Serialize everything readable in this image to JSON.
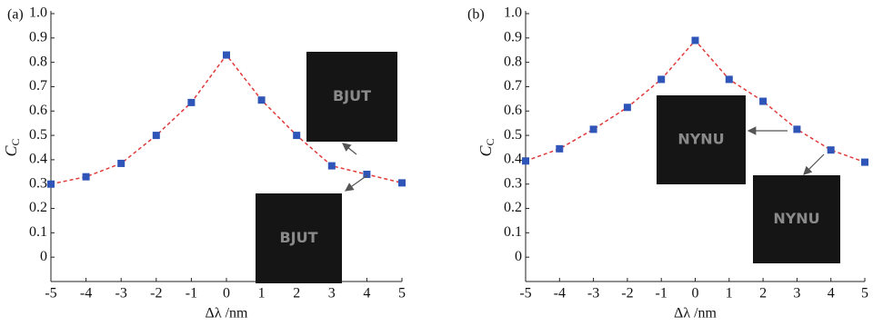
{
  "chart_data": [
    {
      "type": "line",
      "panel": "(a)",
      "xlabel": "Δλ /nm",
      "ylabel": "C",
      "ylabel_sub": "C",
      "x": [
        -5,
        -4,
        -3,
        -2,
        -1,
        0,
        1,
        2,
        3,
        4,
        5
      ],
      "values": [
        0.3,
        0.33,
        0.385,
        0.5,
        0.635,
        0.83,
        0.645,
        0.5,
        0.375,
        0.34,
        0.305
      ],
      "color": "#2f55b8",
      "line_color": "#e03a3a",
      "xlim": [
        -5,
        5
      ],
      "xticks": [
        -5,
        -4,
        -3,
        -2,
        -1,
        0,
        1,
        2,
        3,
        4,
        5
      ],
      "ylim": [
        -0.1,
        1.0
      ],
      "yticks": [
        0,
        0.1,
        0.2,
        0.3,
        0.4,
        0.5,
        0.6,
        0.7,
        0.8,
        0.9,
        {
          "value": 1,
          "label": "1.0"
        }
      ],
      "annotations": [
        "BJUT",
        "BJUT"
      ]
    },
    {
      "type": "line",
      "panel": "(b)",
      "xlabel": "Δλ /nm",
      "ylabel": "C",
      "ylabel_sub": "C",
      "x": [
        -5,
        -4,
        -3,
        -2,
        -1,
        0,
        1,
        2,
        3,
        4,
        5
      ],
      "values": [
        0.395,
        0.445,
        0.525,
        0.615,
        0.73,
        0.89,
        0.73,
        0.64,
        0.525,
        0.44,
        0.39
      ],
      "color": "#2f55b8",
      "line_color": "#e03a3a",
      "xlim": [
        -5,
        5
      ],
      "xticks": [
        -5,
        -4,
        -3,
        -2,
        -1,
        0,
        1,
        2,
        3,
        4,
        5
      ],
      "ylim": [
        -0.1,
        1.0
      ],
      "yticks": [
        0,
        0.1,
        0.2,
        0.3,
        0.4,
        0.5,
        0.6,
        0.7,
        0.8,
        0.9,
        {
          "value": 1,
          "label": "1.0"
        }
      ],
      "annotations": [
        "NYNU",
        "NYNU"
      ]
    }
  ]
}
